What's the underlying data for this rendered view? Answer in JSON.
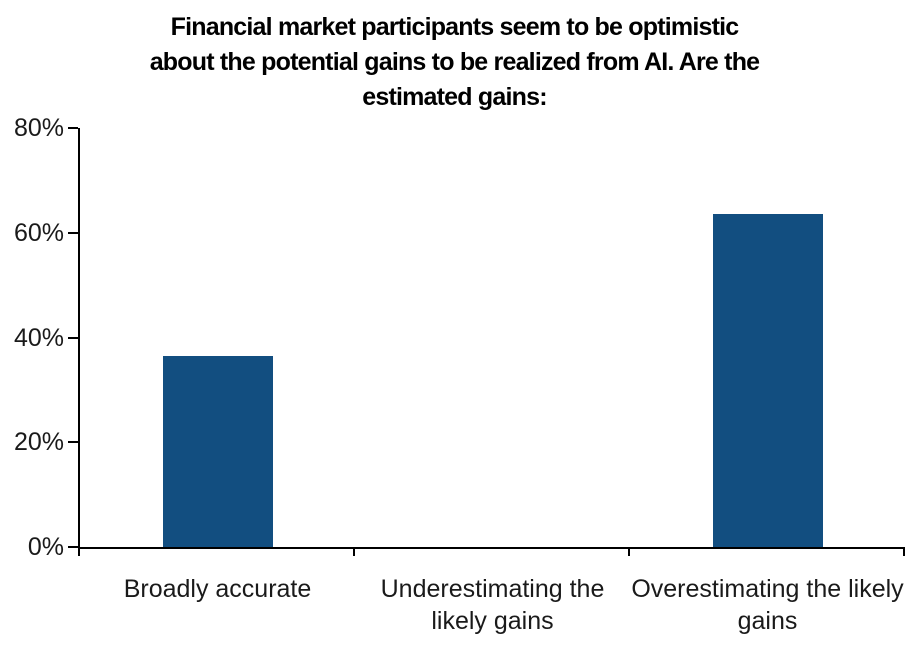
{
  "chart_data": {
    "type": "bar",
    "title": "Financial market participants seem to be optimistic about the potential gains to be realized from AI. Are the estimated gains:",
    "title_lines": [
      "Financial market participants seem to be optimistic",
      "about the potential gains to be realized from AI. Are the",
      "estimated gains:"
    ],
    "categories": [
      "Broadly accurate",
      "Underestimating the likely gains",
      "Overestimating the likely gains"
    ],
    "values": [
      36.4,
      0,
      63.6
    ],
    "xlabel": "",
    "ylabel": "",
    "ylim": [
      0,
      80
    ],
    "ytick_values": [
      0,
      20,
      40,
      60,
      80
    ],
    "ytick_labels": [
      "0%",
      "20%",
      "40%",
      "60%",
      "80%"
    ],
    "grid": false,
    "legend": false,
    "bar_color": "#124E80",
    "axis_color": "#000000",
    "text_color": "#1a1a1a",
    "title_color": "#000000"
  }
}
